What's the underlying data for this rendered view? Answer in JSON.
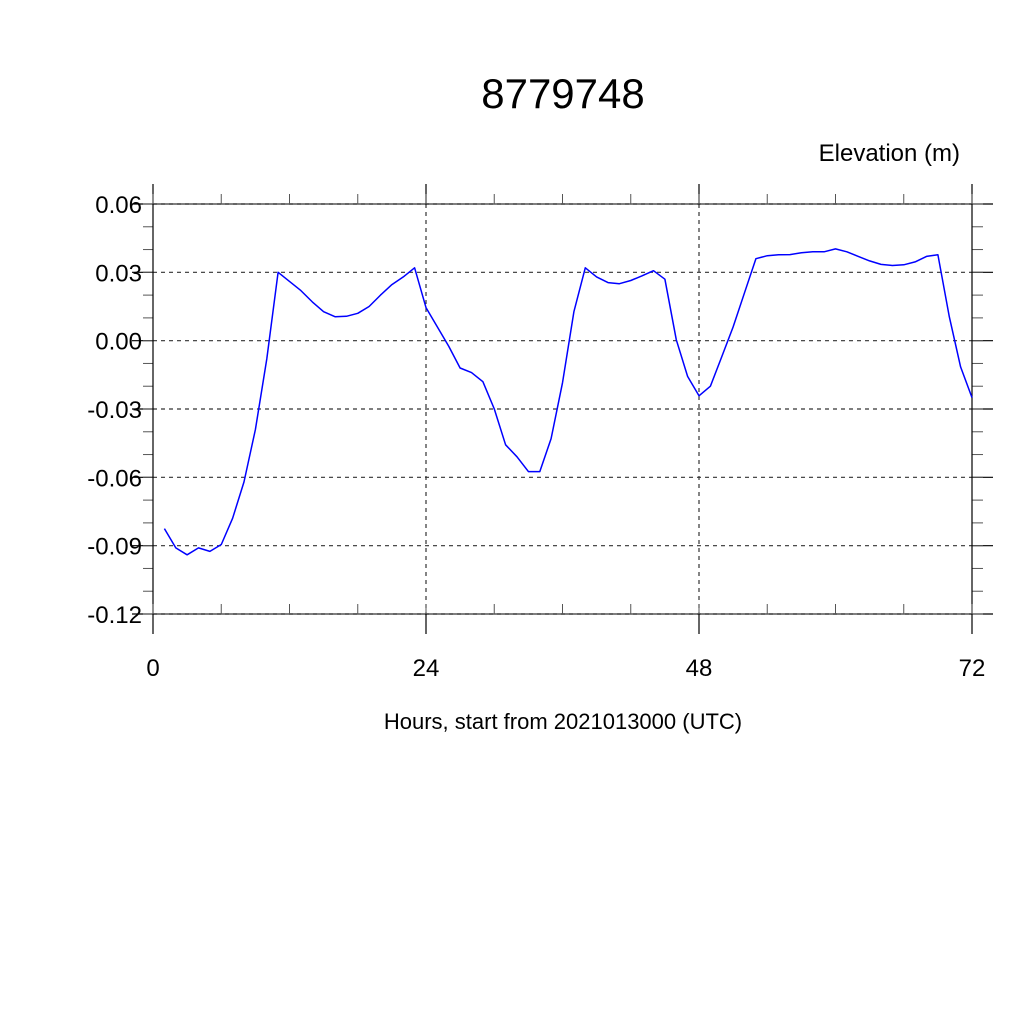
{
  "chart_data": {
    "type": "line",
    "title": "8779748",
    "ylabel": "Elevation (m)",
    "xlabel": "Hours, start from 2021013000 (UTC)",
    "xlim": [
      0,
      72
    ],
    "ylim": [
      -0.12,
      0.06
    ],
    "x_ticks": [
      0,
      24,
      48,
      72
    ],
    "x_tick_labels": [
      "0",
      "24",
      "48",
      "72"
    ],
    "x_minor_step": 6,
    "y_ticks": [
      0.06,
      0.03,
      0.0,
      -0.03,
      -0.06,
      -0.09,
      -0.12
    ],
    "y_tick_labels": [
      "0.06",
      "0.03",
      "0.00",
      "-0.03",
      "-0.06",
      "-0.09",
      "-0.12"
    ],
    "y_minor_step": 0.01,
    "grid": true,
    "colors": {
      "line": "#0000ff",
      "axis": "#000000"
    },
    "series": [
      {
        "x": [
          1,
          2,
          3,
          4,
          5,
          6,
          7,
          8,
          9,
          10,
          11,
          12,
          13,
          14,
          15,
          16,
          17,
          18,
          19,
          20,
          21,
          22,
          23,
          24,
          25,
          26,
          27,
          28,
          29,
          30,
          31,
          32,
          33,
          34,
          35,
          36,
          37,
          38,
          39,
          40,
          41,
          42,
          43,
          44,
          45,
          46,
          47,
          48,
          49,
          50,
          51,
          52,
          53,
          54,
          55,
          56,
          57,
          58,
          59,
          60,
          61,
          62,
          63,
          64,
          65,
          66,
          67,
          68,
          69,
          70,
          71,
          72
        ],
        "values": [
          -0.0825,
          -0.091,
          -0.094,
          -0.091,
          -0.0925,
          -0.0895,
          -0.078,
          -0.062,
          -0.039,
          -0.008,
          0.03,
          0.026,
          0.022,
          0.017,
          0.0127,
          0.0105,
          0.0107,
          0.012,
          0.015,
          0.02,
          0.0246,
          0.028,
          0.032,
          0.0145,
          0.006,
          -0.0025,
          -0.012,
          -0.014,
          -0.018,
          -0.03,
          -0.0457,
          -0.051,
          -0.0575,
          -0.0575,
          -0.043,
          -0.0185,
          0.0127,
          0.032,
          0.028,
          0.0255,
          0.025,
          0.0264,
          0.0285,
          0.0307,
          0.027,
          0.0004,
          -0.0157,
          -0.0242,
          -0.02,
          -0.007,
          0.006,
          0.021,
          0.036,
          0.0373,
          0.0377,
          0.0378,
          0.0386,
          0.039,
          0.039,
          0.0403,
          0.039,
          0.037,
          0.035,
          0.0335,
          0.033,
          0.0333,
          0.0346,
          0.037,
          0.0377,
          0.0105,
          -0.0115,
          -0.025
        ]
      }
    ]
  }
}
